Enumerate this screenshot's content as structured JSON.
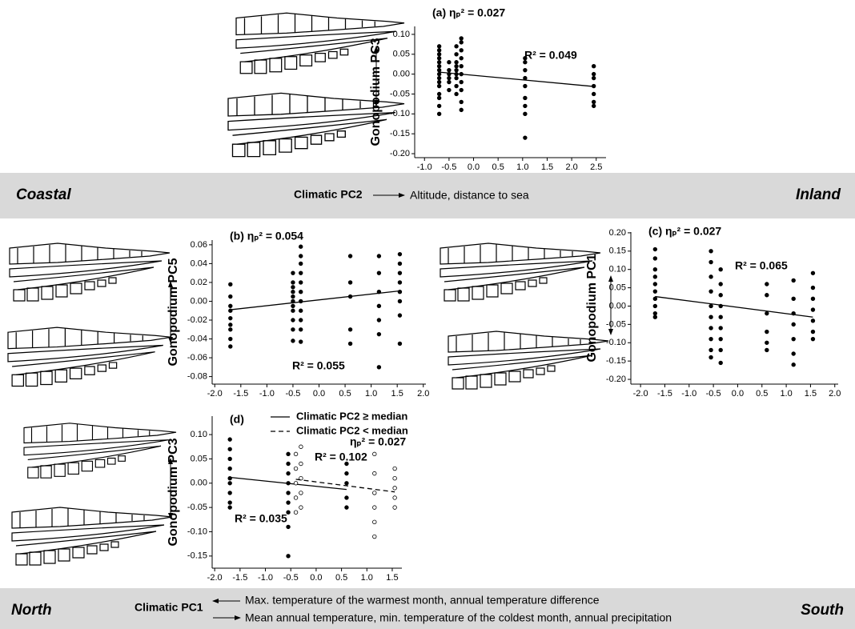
{
  "banners": {
    "top": {
      "left": "Coastal",
      "axis": "Climatic PC2",
      "description": "Altitude, distance to sea",
      "right": "Inland"
    },
    "bottom": {
      "left": "North",
      "axis": "Climatic PC1",
      "description_1": "Max. temperature of the warmest month, annual temperature difference",
      "description_2": "Mean annual temperature, min. temperature of the coldest month, annual precipitation",
      "right": "South"
    }
  },
  "chart_data": [
    {
      "type": "scatter",
      "title": "(a) ηₚ² = 0.027",
      "y_label": "Gonopodium PC3",
      "annotations": [
        "R² = 0.049"
      ],
      "xlim": [
        -1.2,
        2.7
      ],
      "ylim": [
        -0.21,
        0.12
      ],
      "xticks": [
        {
          "value": -1,
          "label": "-1.0"
        },
        {
          "value": -0.5,
          "label": "-0.5"
        },
        {
          "value": 0,
          "label": "0.0"
        },
        {
          "value": 0.5,
          "label": "0.5"
        },
        {
          "value": 1,
          "label": "1.0"
        },
        {
          "value": 1.5,
          "label": "1.5"
        },
        {
          "value": 2,
          "label": "2.0"
        },
        {
          "value": 2.5,
          "label": "2.5"
        }
      ],
      "yticks": [
        {
          "value": -0.2,
          "label": "-0.20"
        },
        {
          "value": -0.15,
          "label": "-0.15"
        },
        {
          "value": -0.1,
          "label": "-0.10"
        },
        {
          "value": -0.05,
          "label": "-0.05"
        },
        {
          "value": 0,
          "label": "0.00"
        },
        {
          "value": 0.05,
          "label": "0.05"
        },
        {
          "value": 0.1,
          "label": "0.10"
        }
      ],
      "series": [
        {
          "color": "#000000",
          "marker": "filled",
          "line_style": "solid",
          "x": [
            -0.7,
            -0.7,
            -0.7,
            -0.7,
            -0.7,
            -0.7,
            -0.7,
            -0.7,
            -0.7,
            -0.7,
            -0.7,
            -0.7,
            -0.7,
            -0.7,
            -0.7,
            -0.5,
            -0.5,
            -0.5,
            -0.5,
            -0.5,
            -0.5,
            -0.35,
            -0.35,
            -0.35,
            -0.35,
            -0.35,
            -0.35,
            -0.35,
            -0.35,
            -0.35,
            -0.25,
            -0.25,
            -0.25,
            -0.25,
            -0.25,
            -0.25,
            -0.25,
            -0.25,
            -0.25,
            -0.25,
            1.05,
            1.05,
            1.05,
            1.05,
            1.05,
            1.05,
            1.05,
            1.05,
            1.05,
            2.45,
            2.45,
            2.45,
            2.45,
            2.45,
            2.45,
            2.45
          ],
          "values": [
            0.07,
            0.06,
            0.05,
            0.04,
            0.03,
            0.02,
            0.01,
            0.0,
            -0.01,
            -0.02,
            -0.03,
            -0.05,
            -0.06,
            -0.08,
            -0.1,
            0.03,
            0.01,
            0.0,
            -0.01,
            -0.02,
            -0.04,
            0.07,
            0.05,
            0.03,
            0.02,
            0.01,
            0.0,
            -0.01,
            -0.03,
            -0.05,
            0.09,
            0.08,
            0.06,
            0.04,
            0.02,
            0.0,
            -0.02,
            -0.04,
            -0.07,
            -0.09,
            0.04,
            0.03,
            0.01,
            -0.01,
            -0.03,
            -0.06,
            -0.08,
            -0.1,
            -0.16,
            0.02,
            0.0,
            -0.01,
            -0.03,
            -0.05,
            -0.07,
            -0.08
          ],
          "trend": {
            "x": [
              -0.7,
              2.45
            ],
            "values": [
              0.005,
              -0.031
            ]
          }
        }
      ]
    },
    {
      "type": "scatter",
      "title": "(b) ηₚ² = 0.054",
      "y_label": "Gonopodium PC5",
      "annotations": [
        "R² = 0.055"
      ],
      "xlim": [
        -2.05,
        2.05
      ],
      "ylim": [
        -0.088,
        0.065
      ],
      "xticks": [
        {
          "value": -2,
          "label": "-2.0"
        },
        {
          "value": -1.5,
          "label": "-1.5"
        },
        {
          "value": -1,
          "label": "-1.0"
        },
        {
          "value": -0.5,
          "label": "-0.5"
        },
        {
          "value": 0,
          "label": "0.0"
        },
        {
          "value": 0.5,
          "label": "0.5"
        },
        {
          "value": 1,
          "label": "1.0"
        },
        {
          "value": 1.5,
          "label": "1.5"
        },
        {
          "value": 2,
          "label": "2.0"
        }
      ],
      "yticks": [
        -0.08,
        -0.06,
        -0.04,
        -0.02,
        {
          "value": 0,
          "label": "0.00"
        },
        0.02,
        0.04,
        0.06
      ],
      "series": [
        {
          "color": "#000000",
          "marker": "filled",
          "line_style": "solid",
          "x": [
            -1.7,
            -1.7,
            -1.7,
            -1.7,
            -1.7,
            -1.7,
            -1.7,
            -1.7,
            -1.7,
            -0.5,
            -0.5,
            -0.5,
            -0.5,
            -0.5,
            -0.5,
            -0.5,
            -0.5,
            -0.5,
            -0.5,
            -0.5,
            -0.35,
            -0.35,
            -0.35,
            -0.35,
            -0.35,
            -0.35,
            -0.35,
            -0.35,
            -0.35,
            -0.35,
            -0.35,
            0.6,
            0.6,
            0.6,
            0.6,
            0.6,
            1.15,
            1.15,
            1.15,
            1.15,
            1.15,
            1.15,
            1.15,
            1.55,
            1.55,
            1.55,
            1.55,
            1.55,
            1.55,
            1.55,
            1.55
          ],
          "values": [
            0.018,
            0.005,
            -0.005,
            -0.01,
            -0.018,
            -0.025,
            -0.03,
            -0.04,
            -0.048,
            0.03,
            0.02,
            0.015,
            0.01,
            0.005,
            0.0,
            -0.005,
            -0.01,
            -0.02,
            -0.03,
            -0.042,
            0.058,
            0.048,
            0.04,
            0.03,
            0.02,
            0.01,
            0.0,
            -0.01,
            -0.02,
            -0.03,
            -0.043,
            0.048,
            0.02,
            0.005,
            -0.03,
            -0.045,
            0.048,
            0.03,
            0.01,
            -0.005,
            -0.02,
            -0.035,
            -0.07,
            0.05,
            0.04,
            0.03,
            0.02,
            0.01,
            0.0,
            -0.015,
            -0.045
          ],
          "trend": {
            "x": [
              -1.7,
              1.55
            ],
            "values": [
              -0.009,
              0.011
            ]
          }
        }
      ]
    },
    {
      "type": "scatter",
      "title": "(c) ηₚ² = 0.027",
      "y_label": "Gonopodium PC1",
      "annotations": [
        "R² = 0.065"
      ],
      "xlim": [
        -2.2,
        2.07
      ],
      "ylim": [
        -0.213,
        0.202
      ],
      "xticks": [
        {
          "value": -2,
          "label": "-2.0"
        },
        {
          "value": -1.5,
          "label": "-1.5"
        },
        {
          "value": -1,
          "label": "-1.0"
        },
        {
          "value": -0.5,
          "label": "-0.5"
        },
        {
          "value": 0,
          "label": "0.0"
        },
        {
          "value": 0.5,
          "label": "0.5"
        },
        {
          "value": 1,
          "label": "1.0"
        },
        {
          "value": 1.5,
          "label": "1.5"
        },
        {
          "value": 2,
          "label": "2.0"
        }
      ],
      "yticks": [
        {
          "value": -0.2,
          "label": "-0.20"
        },
        -0.15,
        {
          "value": -0.1,
          "label": "-0.10"
        },
        -0.05,
        {
          "value": 0,
          "label": "0.00"
        },
        0.05,
        {
          "value": 0.1,
          "label": "0.10"
        },
        0.15,
        {
          "value": 0.2,
          "label": "0.20"
        }
      ],
      "series": [
        {
          "color": "#000000",
          "marker": "filled",
          "line_style": "solid",
          "x": [
            -1.7,
            -1.7,
            -1.7,
            -1.7,
            -1.7,
            -1.7,
            -1.7,
            -1.7,
            -1.7,
            -1.7,
            -0.55,
            -0.55,
            -0.55,
            -0.55,
            -0.55,
            -0.55,
            -0.55,
            -0.55,
            -0.55,
            -0.55,
            -0.35,
            -0.35,
            -0.35,
            -0.35,
            -0.35,
            -0.35,
            -0.35,
            -0.35,
            -0.35,
            0.6,
            0.6,
            0.6,
            0.6,
            0.6,
            0.6,
            1.15,
            1.15,
            1.15,
            1.15,
            1.15,
            1.15,
            1.15,
            1.55,
            1.55,
            1.55,
            1.55,
            1.55,
            1.55,
            1.55
          ],
          "values": [
            0.155,
            0.13,
            0.1,
            0.08,
            0.06,
            0.04,
            0.02,
            0.0,
            -0.02,
            -0.03,
            0.15,
            0.12,
            0.08,
            0.04,
            0.0,
            -0.03,
            -0.06,
            -0.09,
            -0.12,
            -0.14,
            0.1,
            0.06,
            0.03,
            0.0,
            -0.03,
            -0.06,
            -0.09,
            -0.12,
            -0.155,
            0.06,
            0.03,
            -0.02,
            -0.07,
            -0.1,
            -0.12,
            0.07,
            0.02,
            -0.02,
            -0.05,
            -0.09,
            -0.13,
            -0.16,
            0.09,
            0.05,
            0.02,
            -0.01,
            -0.04,
            -0.07,
            -0.09
          ],
          "trend": {
            "x": [
              -1.7,
              1.55
            ],
            "values": [
              0.026,
              -0.03
            ]
          }
        }
      ]
    },
    {
      "type": "scatter",
      "title": "(d)",
      "y_label": "Gonopodium PC3",
      "annotations": [
        "ηₚ² = 0.027",
        "R² = 0.102",
        "R² = 0.035"
      ],
      "legend": "upper right",
      "xlim": [
        -2.05,
        1.69
      ],
      "ylim": [
        -0.175,
        0.138
      ],
      "xticks": [
        {
          "value": -2,
          "label": "-2.0"
        },
        {
          "value": -1.5,
          "label": "-1.5"
        },
        {
          "value": -1,
          "label": "-1.0"
        },
        {
          "value": -0.5,
          "label": "-0.5"
        },
        {
          "value": 0,
          "label": "0.0"
        },
        {
          "value": 0.5,
          "label": "0.5"
        },
        {
          "value": 1,
          "label": "1.0"
        },
        {
          "value": 1.5,
          "label": "1.5"
        }
      ],
      "yticks": [
        -0.15,
        {
          "value": -0.1,
          "label": "-0.10"
        },
        -0.05,
        {
          "value": 0,
          "label": "0.00"
        },
        0.05,
        {
          "value": 0.1,
          "label": "0.10"
        }
      ],
      "series": [
        {
          "name": "Climatic PC2 ≥ median",
          "color": "#000000",
          "marker": "filled",
          "line_style": "solid",
          "x": [
            -1.7,
            -1.7,
            -1.7,
            -1.7,
            -1.7,
            -1.7,
            -1.7,
            -1.7,
            -1.7,
            -0.55,
            -0.55,
            -0.55,
            -0.55,
            -0.55,
            -0.55,
            -0.55,
            -0.55,
            -0.55,
            0.6,
            0.6,
            0.6,
            0.6,
            0.6
          ],
          "values": [
            0.09,
            0.07,
            0.05,
            0.03,
            0.01,
            0.0,
            -0.02,
            -0.04,
            -0.05,
            0.06,
            0.04,
            0.02,
            0.0,
            -0.02,
            -0.04,
            -0.06,
            -0.09,
            -0.15,
            0.04,
            0.02,
            0.0,
            -0.03,
            -0.05
          ],
          "trend": {
            "x": [
              -1.7,
              0.6
            ],
            "values": [
              0.012,
              -0.013
            ]
          }
        },
        {
          "name": "Climatic PC2 < median",
          "color": "#000000",
          "marker": "open",
          "line_style": "dashed",
          "x": [
            -0.4,
            -0.4,
            -0.4,
            -0.4,
            -0.4,
            -0.3,
            -0.3,
            -0.3,
            -0.3,
            -0.3,
            1.15,
            1.15,
            1.15,
            1.15,
            1.15,
            1.15,
            1.55,
            1.55,
            1.55,
            1.55,
            1.55
          ],
          "values": [
            0.06,
            0.03,
            0.0,
            -0.03,
            -0.06,
            0.075,
            0.04,
            0.01,
            -0.02,
            -0.05,
            0.06,
            0.02,
            -0.02,
            -0.05,
            -0.08,
            -0.11,
            0.03,
            0.01,
            -0.01,
            -0.03,
            -0.05
          ],
          "trend": {
            "x": [
              -0.4,
              1.55
            ],
            "values": [
              0.008,
              -0.018
            ]
          }
        }
      ]
    }
  ]
}
